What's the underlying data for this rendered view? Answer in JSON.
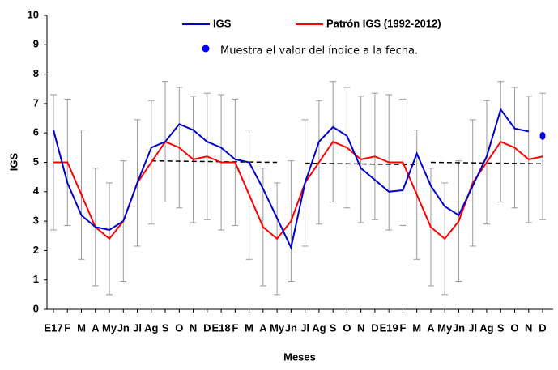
{
  "chart_data": {
    "type": "line",
    "x_label": "Meses",
    "y_label": "IGS",
    "categories": [
      "E17",
      "F",
      "M",
      "A",
      "My",
      "Jn",
      "Jl",
      "Ag",
      "S",
      "O",
      "N",
      "D",
      "E18",
      "F",
      "M",
      "A",
      "My",
      "Jn",
      "Jl",
      "Ag",
      "S",
      "O",
      "N",
      "D",
      "E19",
      "F",
      "M",
      "A",
      "My",
      "Jn",
      "Jl",
      "Ag",
      "S",
      "O",
      "N",
      "D"
    ],
    "ylim": [
      0,
      10
    ],
    "yticks": [
      0,
      1,
      2,
      3,
      4,
      5,
      6,
      7,
      8,
      9,
      10
    ],
    "series": [
      {
        "name": "IGS",
        "color": "#0000cc",
        "values": [
          6.1,
          4.3,
          3.2,
          2.8,
          2.7,
          3.0,
          4.3,
          5.5,
          5.7,
          6.3,
          6.1,
          5.7,
          5.5,
          5.1,
          5.0,
          4.1,
          3.1,
          2.1,
          4.3,
          5.7,
          6.2,
          5.9,
          4.8,
          4.4,
          4.0,
          4.05,
          5.3,
          4.2,
          3.5,
          3.2,
          4.2,
          5.2,
          6.8,
          6.15,
          6.05,
          null
        ]
      },
      {
        "name": "Patrón IGS (1992-2012)",
        "color": "#ff0000",
        "values": [
          5.0,
          5.0,
          3.9,
          2.8,
          2.4,
          3.0,
          4.3,
          5.0,
          5.7,
          5.5,
          5.1,
          5.2,
          5.0,
          5.0,
          3.9,
          2.8,
          2.4,
          3.0,
          4.3,
          5.0,
          5.7,
          5.5,
          5.1,
          5.2,
          5.0,
          5.0,
          3.9,
          2.8,
          2.4,
          3.0,
          4.3,
          5.0,
          5.7,
          5.5,
          5.1,
          5.2
        ],
        "errors": [
          2.3,
          2.15,
          2.2,
          2.0,
          1.9,
          2.05,
          2.15,
          2.1,
          2.05,
          2.05,
          2.15,
          2.15,
          2.3,
          2.15,
          2.2,
          2.0,
          1.9,
          2.05,
          2.15,
          2.1,
          2.05,
          2.05,
          2.15,
          2.15,
          2.3,
          2.15,
          2.2,
          2.0,
          1.9,
          2.05,
          2.15,
          2.1,
          2.05,
          2.05,
          2.15,
          2.15
        ],
        "error_color": "#999999"
      }
    ],
    "trend": [
      {
        "x": [
          7,
          16
        ],
        "values": [
          5.05,
          5.0
        ]
      },
      {
        "x": [
          18,
          26
        ],
        "values": [
          4.97,
          4.92
        ]
      },
      {
        "x": [
          27,
          35
        ],
        "values": [
          5.0,
          4.95
        ]
      }
    ],
    "trend_color": "#000000",
    "marker": {
      "label": "Muestra el valor del índice a la fecha.",
      "index": 35,
      "value": 5.9,
      "color": "#0000ff"
    }
  }
}
